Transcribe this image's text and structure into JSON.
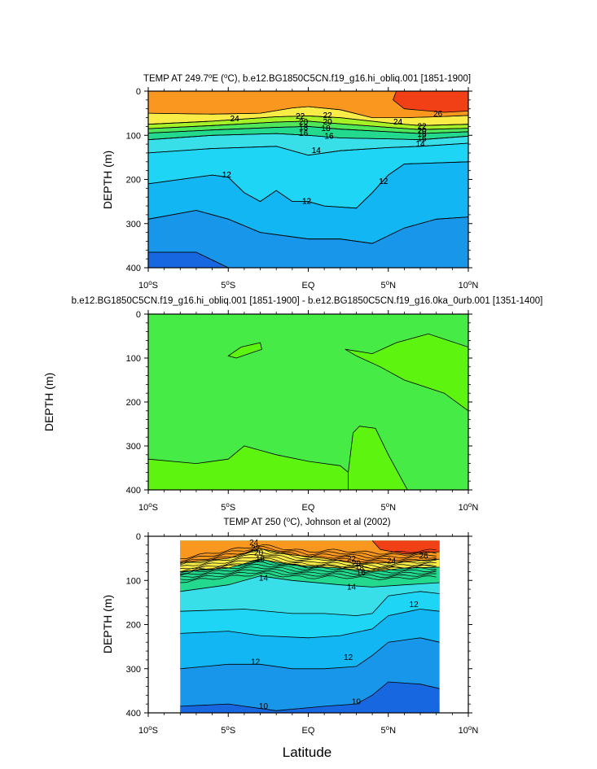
{
  "chart_data": [
    {
      "type": "contour",
      "title": "TEMP AT 249.7°E (°C), b.e12.BG1850C5CN.f19_g16.hi_obliq.001 [1851-1900]",
      "title_parts": {
        "prefix": "TEMP AT 249.7",
        "sup1": "o",
        "mid1": "E (",
        "sup2": "o",
        "rest": "C), b.e12.BG1850C5CN.f19_g16.hi_obliq.001 [1851-1900]"
      },
      "ylabel": "DEPTH (m)",
      "xlabel": "",
      "xlim": [
        -10,
        10
      ],
      "ylim": [
        400,
        0
      ],
      "yticks": [
        "0",
        "100",
        "200",
        "300",
        "400"
      ],
      "contour_labels": [
        "24",
        "22",
        "20",
        "18",
        "16",
        "14",
        "12",
        "26",
        "22",
        "20",
        "18",
        "16",
        "14",
        "12",
        "12",
        "22",
        "20",
        "18",
        "16",
        "24"
      ],
      "label_positions": [
        [
          -4.6,
          63
        ],
        [
          -0.5,
          57
        ],
        [
          -0.3,
          70
        ],
        [
          -0.3,
          83
        ],
        [
          -0.3,
          96
        ],
        [
          0.5,
          135
        ],
        [
          -5.1,
          190
        ],
        [
          8.1,
          52
        ],
        [
          7.1,
          80
        ],
        [
          7.1,
          90
        ],
        [
          7.1,
          98
        ],
        [
          7.1,
          108
        ],
        [
          7.0,
          120
        ],
        [
          -0.1,
          250
        ],
        [
          4.7,
          205
        ],
        [
          1.2,
          55
        ],
        [
          1.2,
          70
        ],
        [
          1.1,
          85
        ],
        [
          1.3,
          102
        ],
        [
          5.6,
          70
        ]
      ],
      "isotherms": [
        {
          "level": 26,
          "points": [
            [
              5.5,
              0
            ],
            [
              5.3,
              20
            ],
            [
              6.0,
              40
            ],
            [
              8.5,
              48
            ],
            [
              10,
              45
            ]
          ]
        },
        {
          "level": 24,
          "points": [
            [
              -10,
              50
            ],
            [
              -6,
              52
            ],
            [
              -3,
              50
            ],
            [
              -1,
              38
            ],
            [
              0,
              35
            ],
            [
              2,
              42
            ],
            [
              4,
              60
            ],
            [
              6,
              60
            ],
            [
              8,
              58
            ],
            [
              10,
              55
            ]
          ]
        },
        {
          "level": 22,
          "points": [
            [
              -10,
              75
            ],
            [
              -6,
              68
            ],
            [
              -2,
              58
            ],
            [
              0,
              56
            ],
            [
              2,
              60
            ],
            [
              5,
              72
            ],
            [
              7,
              78
            ],
            [
              10,
              75
            ]
          ]
        },
        {
          "level": 20,
          "points": [
            [
              -10,
              85
            ],
            [
              -6,
              78
            ],
            [
              -2,
              70
            ],
            [
              0,
              68
            ],
            [
              2,
              74
            ],
            [
              5,
              82
            ],
            [
              7,
              87
            ],
            [
              10,
              84
            ]
          ]
        },
        {
          "level": 18,
          "points": [
            [
              -10,
              95
            ],
            [
              -6,
              88
            ],
            [
              -2,
              82
            ],
            [
              0,
              80
            ],
            [
              2,
              86
            ],
            [
              5,
              92
            ],
            [
              7,
              96
            ],
            [
              10,
              92
            ]
          ]
        },
        {
          "level": 16,
          "points": [
            [
              -10,
              110
            ],
            [
              -6,
              100
            ],
            [
              -2,
              96
            ],
            [
              0,
              100
            ],
            [
              2,
              106
            ],
            [
              5,
              108
            ],
            [
              7,
              110
            ],
            [
              10,
              102
            ]
          ]
        },
        {
          "level": 14,
          "points": [
            [
              -10,
              140
            ],
            [
              -6,
              130
            ],
            [
              -2,
              125
            ],
            [
              0,
              145
            ],
            [
              2,
              135
            ],
            [
              5,
              128
            ],
            [
              7,
              125
            ],
            [
              10,
              118
            ]
          ]
        },
        {
          "level": 12,
          "points": [
            [
              -10,
              210
            ],
            [
              -6,
              190
            ],
            [
              -5,
              195
            ],
            [
              -4,
              230
            ],
            [
              -3,
              250
            ],
            [
              -2,
              225
            ],
            [
              -1,
              250
            ],
            [
              0,
              250
            ],
            [
              1,
              260
            ],
            [
              3,
              265
            ],
            [
              4,
              230
            ],
            [
              5,
              190
            ],
            [
              6,
              165
            ],
            [
              10,
              160
            ]
          ]
        },
        {
          "level": 11,
          "points": [
            [
              -10,
              290
            ],
            [
              -7,
              270
            ],
            [
              -5,
              290
            ],
            [
              -3,
              320
            ],
            [
              0,
              335
            ],
            [
              2,
              335
            ],
            [
              4,
              345
            ],
            [
              6,
              310
            ],
            [
              8,
              290
            ],
            [
              10,
              285
            ]
          ]
        },
        {
          "level": 10,
          "points": [
            [
              -10,
              365
            ],
            [
              -7,
              365
            ],
            [
              -5,
              400
            ]
          ]
        }
      ]
    },
    {
      "type": "contour",
      "title": "b.e12.BG1850C5CN.f19_g16.hi_obliq.001 [1851-1900] - b.e12.BG1850C5CN.f19_g16.0ka_0urb.001 [1351-1400]",
      "ylabel": "DEPTH (m)",
      "xlabel": "",
      "xlim": [
        -10,
        10
      ],
      "ylim": [
        400,
        0
      ],
      "yticks": [
        "0",
        "100",
        "200",
        "300",
        "400"
      ],
      "regions": [
        {
          "name": "island-5S",
          "points": [
            [
              -5,
              95
            ],
            [
              -4.2,
              75
            ],
            [
              -3,
              65
            ],
            [
              -2.9,
              80
            ],
            [
              -4.5,
              100
            ]
          ]
        },
        {
          "name": "lower-left",
          "points": [
            [
              -10,
              330
            ],
            [
              -7,
              340
            ],
            [
              -5,
              330
            ],
            [
              -4,
              300
            ],
            [
              -3,
              310
            ],
            [
              -2,
              320
            ],
            [
              0,
              335
            ],
            [
              2,
              345
            ],
            [
              2.5,
              360
            ],
            [
              2.5,
              400
            ],
            [
              -10,
              400
            ]
          ]
        },
        {
          "name": "lower-middle",
          "points": [
            [
              2.5,
              360
            ],
            [
              2.8,
              270
            ],
            [
              3.2,
              255
            ],
            [
              4.2,
              260
            ],
            [
              5,
              320
            ],
            [
              6.2,
              400
            ],
            [
              2.5,
              400
            ]
          ]
        },
        {
          "name": "upper-right",
          "points": [
            [
              2.3,
              80
            ],
            [
              4,
              90
            ],
            [
              5.5,
              65
            ],
            [
              7.5,
              45
            ],
            [
              10,
              75
            ],
            [
              10,
              220
            ],
            [
              8.5,
              180
            ],
            [
              6,
              150
            ],
            [
              4.5,
              120
            ],
            [
              3,
              95
            ]
          ]
        }
      ]
    },
    {
      "type": "contour",
      "title": "TEMP AT 250 (°C), Johnson et al (2002)",
      "title_parts": {
        "prefix": "TEMP AT 250 (",
        "sup": "o",
        "rest": "C), Johnson et al (2002)"
      },
      "ylabel": "DEPTH (m)",
      "xlabel": "Latitude",
      "xlim": [
        -10,
        10
      ],
      "ylim": [
        400,
        0
      ],
      "data_xlim": [
        -8,
        8.2
      ],
      "yticks": [
        "0",
        "100",
        "200",
        "300",
        "400"
      ],
      "xticks": [
        {
          "deg": "10",
          "sup": "o",
          "hemi": "S"
        },
        {
          "deg": "5",
          "sup": "o",
          "hemi": "S"
        },
        {
          "deg": "EQ",
          "sup": "",
          "hemi": ""
        },
        {
          "deg": "5",
          "sup": "o",
          "hemi": "N"
        },
        {
          "deg": "10",
          "sup": "o",
          "hemi": "N"
        }
      ],
      "contour_labels": [
        "24",
        "22",
        "20",
        "18",
        "22",
        "20",
        "18",
        "16",
        "24",
        "26",
        "14",
        "14",
        "12",
        "12",
        "12",
        "10",
        "10"
      ],
      "label_positions": [
        [
          -3.4,
          15
        ],
        [
          -3.3,
          28
        ],
        [
          -3.1,
          38
        ],
        [
          -3.0,
          52
        ],
        [
          2.7,
          52
        ],
        [
          3.0,
          62
        ],
        [
          3.2,
          72
        ],
        [
          3.3,
          82
        ],
        [
          5.2,
          56
        ],
        [
          7.2,
          45
        ],
        [
          -2.8,
          95
        ],
        [
          2.7,
          115
        ],
        [
          6.6,
          155
        ],
        [
          -3.3,
          285
        ],
        [
          2.5,
          275
        ],
        [
          -2.8,
          385
        ],
        [
          3.0,
          375
        ]
      ],
      "isotherms": [
        {
          "level": 26,
          "points": [
            [
              4,
              10
            ],
            [
              4.5,
              30
            ],
            [
              6,
              40
            ],
            [
              8.2,
              35
            ]
          ]
        },
        {
          "level": 22,
          "points": [
            [
              -8,
              60
            ],
            [
              -5,
              50
            ],
            [
              -3,
              28
            ],
            [
              -1,
              42
            ],
            [
              1,
              50
            ],
            [
              3,
              62
            ],
            [
              5,
              60
            ],
            [
              7,
              55
            ],
            [
              8.2,
              52
            ]
          ]
        },
        {
          "level": 16,
          "points": [
            [
              -8,
              80
            ],
            [
              -5,
              72
            ],
            [
              -3,
              52
            ],
            [
              -1,
              65
            ],
            [
              2,
              72
            ],
            [
              4,
              80
            ],
            [
              6,
              72
            ],
            [
              8.2,
              70
            ]
          ]
        },
        {
          "level": 14,
          "points": [
            [
              -8,
              125
            ],
            [
              -5,
              110
            ],
            [
              -3,
              90
            ],
            [
              -1,
              100
            ],
            [
              2,
              110
            ],
            [
              4,
              115
            ],
            [
              6,
              110
            ],
            [
              8.2,
              105
            ]
          ]
        },
        {
          "level": 13,
          "points": [
            [
              -8,
              170
            ],
            [
              -4,
              165
            ],
            [
              -1,
              175
            ],
            [
              1,
              175
            ],
            [
              3,
              180
            ],
            [
              4,
              175
            ],
            [
              5,
              135
            ],
            [
              7,
              125
            ],
            [
              8.2,
              130
            ]
          ]
        },
        {
          "level": 12,
          "points": [
            [
              -8,
              220
            ],
            [
              -5,
              215
            ],
            [
              -3,
              225
            ],
            [
              0,
              230
            ],
            [
              2,
              225
            ],
            [
              4,
              210
            ],
            [
              5,
              180
            ],
            [
              7,
              165
            ],
            [
              8.2,
              170
            ]
          ]
        },
        {
          "level": 11,
          "points": [
            [
              -8,
              300
            ],
            [
              -5,
              290
            ],
            [
              -3,
              290
            ],
            [
              -1,
              300
            ],
            [
              1,
              300
            ],
            [
              3,
              295
            ],
            [
              4,
              270
            ],
            [
              5,
              240
            ],
            [
              7,
              230
            ],
            [
              8.2,
              240
            ]
          ]
        },
        {
          "level": 10,
          "points": [
            [
              -8,
              385
            ],
            [
              -5,
              380
            ],
            [
              -2,
              395
            ],
            [
              1,
              385
            ],
            [
              3,
              380
            ],
            [
              4,
              360
            ],
            [
              5,
              330
            ],
            [
              7,
              335
            ],
            [
              8.2,
              345
            ]
          ]
        }
      ]
    }
  ],
  "colors": {
    "c26": "#f24016",
    "c24": "#f9971e",
    "c22": "#f9b33f",
    "c21": "#f9ec46",
    "c20": "#e3f733",
    "c18": "#a6f227",
    "c16": "#4fe65a",
    "c15": "#23d98e",
    "c14": "#38dfe9",
    "c13": "#1ed5f5",
    "c12": "#12b6f2",
    "c11": "#1796ea",
    "c10": "#1767e0",
    "diff_bg": "#46eb46",
    "diff_hi": "#5df50f"
  }
}
